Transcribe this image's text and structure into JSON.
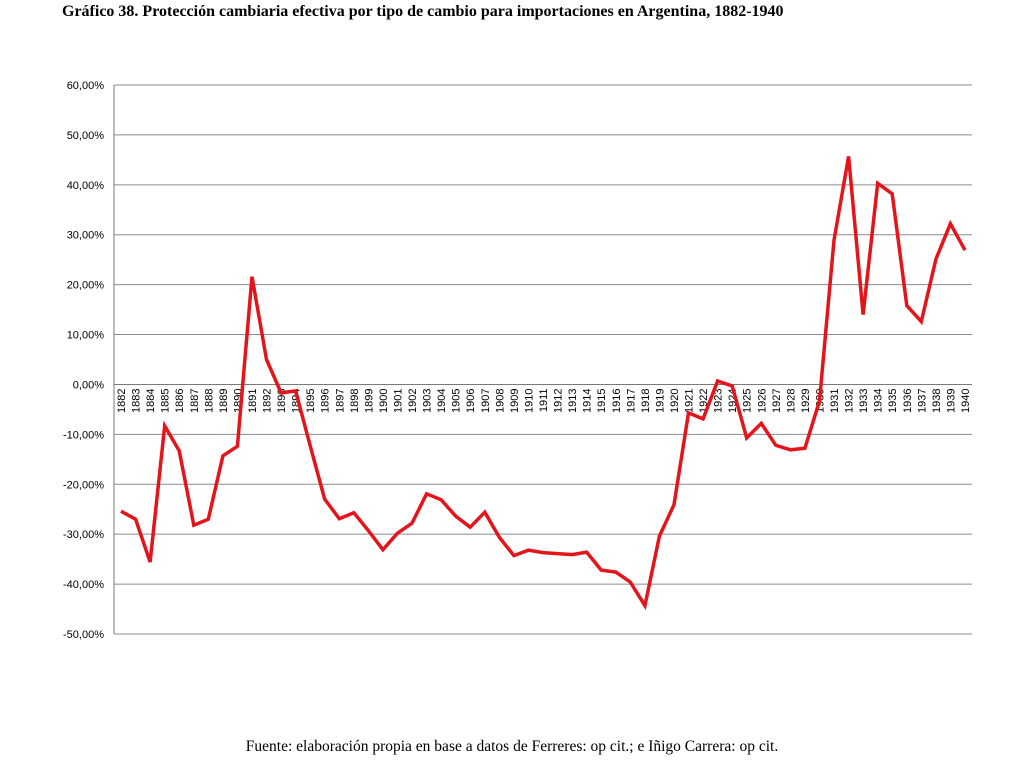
{
  "title": "Gráfico 38. Protección cambiaria efectiva por tipo de cambio para importaciones en Argentina, 1882-1940",
  "source": "Fuente: elaboración propia en base a datos de Ferreres: op cit.; e Iñigo Carrera: op cit.",
  "chart_data": {
    "type": "line",
    "title": "Gráfico 38. Protección cambiaria efectiva por tipo de cambio para importaciones en Argentina, 1882-1940",
    "xlabel": "",
    "ylabel": "",
    "ylim": [
      -50,
      60
    ],
    "y_ticks": [
      "60,00%",
      "50,00%",
      "40,00%",
      "30,00%",
      "20,00%",
      "10,00%",
      "0,00%",
      "-10,00%",
      "-20,00%",
      "-30,00%",
      "-40,00%",
      "-50,00%"
    ],
    "grid": true,
    "legend": "none",
    "series_color": "#e3151b",
    "categories": [
      "1882",
      "1883",
      "1884",
      "1885",
      "1886",
      "1887",
      "1888",
      "1889",
      "1890",
      "1891",
      "1892",
      "1893",
      "1894",
      "1895",
      "1896",
      "1897",
      "1898",
      "1899",
      "1900",
      "1901",
      "1902",
      "1903",
      "1904",
      "1905",
      "1906",
      "1907",
      "1908",
      "1909",
      "1910",
      "1911",
      "1912",
      "1913",
      "1914",
      "1915",
      "1916",
      "1917",
      "1918",
      "1919",
      "1920",
      "1921",
      "1922",
      "1923",
      "1924",
      "1925",
      "1926",
      "1927",
      "1928",
      "1929",
      "1930",
      "1931",
      "1932",
      "1933",
      "1934",
      "1935",
      "1936",
      "1937",
      "1938",
      "1939",
      "1940"
    ],
    "values": [
      -25.4,
      -27.0,
      -35.6,
      -8.3,
      -13.3,
      -28.2,
      -27.0,
      -14.3,
      -12.4,
      21.6,
      5.0,
      -1.7,
      -1.3,
      -12.3,
      -23.0,
      -26.9,
      -25.7,
      -29.3,
      -33.1,
      -29.8,
      -27.8,
      -21.9,
      -23.1,
      -26.4,
      -28.6,
      -25.6,
      -30.6,
      -34.3,
      -33.2,
      -33.7,
      -33.9,
      -34.1,
      -33.6,
      -37.2,
      -37.6,
      -39.6,
      -44.3,
      -30.4,
      -24.1,
      -5.7,
      -6.9,
      0.7,
      -0.3,
      -10.7,
      -7.8,
      -12.2,
      -13.1,
      -12.8,
      -3.3,
      28.9,
      45.7,
      14.0,
      40.3,
      38.2,
      15.8,
      12.6,
      25.1,
      32.2,
      26.9
    ]
  }
}
